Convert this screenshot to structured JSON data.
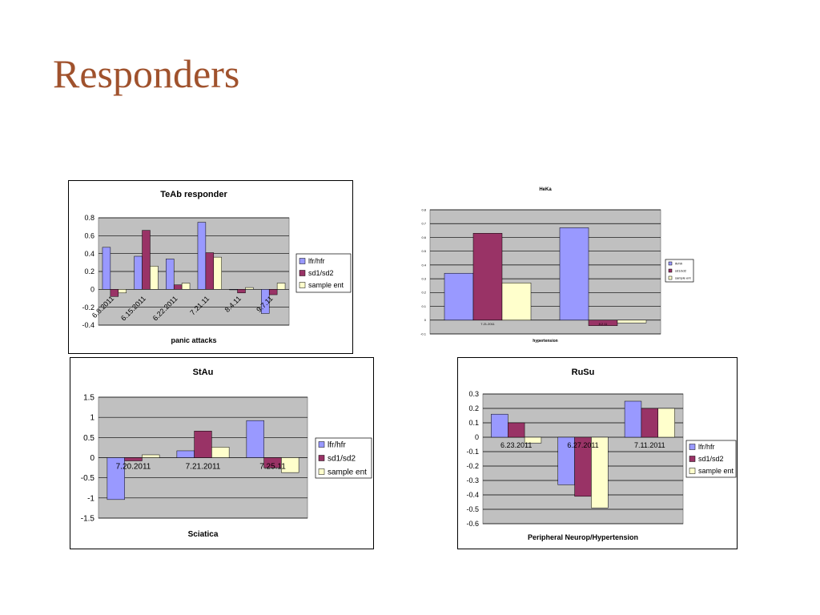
{
  "slide": {
    "title": "Responders"
  },
  "colors": {
    "lfr_hfr": "#9999ff",
    "sd1_sd2": "#993366",
    "sample_ent": "#ffffcc",
    "plot_bg": "#c0c0c0",
    "title_color": "#a0522d"
  },
  "chart_data": [
    {
      "type": "bar",
      "title": "TeAb responder",
      "xlabel": "panic attacks",
      "ylabel": "",
      "categories": [
        "6.8.2011",
        "6.15.2011",
        "6.22.2011",
        "7.21.11",
        "8.4.11",
        "9.7.11"
      ],
      "series": [
        {
          "name": "lfr/hfr",
          "values": [
            0.47,
            0.37,
            0.34,
            0.75,
            0.0,
            -0.27
          ]
        },
        {
          "name": "sd1/sd2",
          "values": [
            -0.08,
            0.66,
            0.05,
            0.41,
            -0.04,
            -0.06
          ]
        },
        {
          "name": "sample ent",
          "values": [
            -0.04,
            0.26,
            0.07,
            0.36,
            0.02,
            0.07
          ]
        }
      ],
      "ylim": [
        -0.4,
        0.8
      ],
      "yticks": [
        0.8,
        0.6,
        0.4,
        0.2,
        0,
        -0.2,
        -0.4
      ],
      "ytick_labels": [
        "0.8",
        "0.6",
        "0.4",
        "0.2",
        "0",
        "-0.2",
        "-0.4"
      ],
      "grid": true,
      "legend": "right"
    },
    {
      "type": "bar",
      "title": "HeKa",
      "xlabel": "hypertension",
      "ylabel": "",
      "categories": [
        "7.21.2011",
        "8.2.11"
      ],
      "series": [
        {
          "name": "lfr/hfr",
          "values": [
            0.34,
            0.67
          ]
        },
        {
          "name": "sd1/sd2",
          "values": [
            0.63,
            -0.04
          ]
        },
        {
          "name": "sample ent",
          "values": [
            0.27,
            -0.02
          ]
        }
      ],
      "ylim": [
        -0.1,
        0.8
      ],
      "yticks": [
        0.8,
        0.7,
        0.6,
        0.5,
        0.4,
        0.3,
        0.2,
        0.1,
        0,
        -0.1
      ],
      "ytick_labels": [
        "0.8",
        "0.7",
        "0.6",
        "0.5",
        "0.4",
        "0.3",
        "0.2",
        "0.1",
        "0",
        "-0.1"
      ],
      "grid": true,
      "legend": "right"
    },
    {
      "type": "bar",
      "title": "StAu",
      "xlabel": "Sciatica",
      "ylabel": "",
      "categories": [
        "7.20.2011",
        "7.21.2011",
        "7.25.11"
      ],
      "series": [
        {
          "name": "lfr/hfr",
          "values": [
            -1.04,
            0.17,
            0.92
          ]
        },
        {
          "name": "sd1/sd2",
          "values": [
            -0.08,
            0.66,
            -0.25
          ]
        },
        {
          "name": "sample ent",
          "values": [
            0.07,
            0.26,
            -0.37
          ]
        }
      ],
      "ylim": [
        -1.5,
        1.5
      ],
      "yticks": [
        1.5,
        1,
        0.5,
        0,
        -0.5,
        -1,
        -1.5
      ],
      "ytick_labels": [
        "1.5",
        "1",
        "0.5",
        "0",
        "-0.5",
        "-1",
        "-1.5"
      ],
      "grid": true,
      "legend": "right"
    },
    {
      "type": "bar",
      "title": "RuSu",
      "xlabel": "Peripheral Neurop/Hypertension",
      "ylabel": "",
      "categories": [
        "6.23.2011",
        "6.27.2011",
        "7.11.2011"
      ],
      "series": [
        {
          "name": "lfr/hfr",
          "values": [
            0.16,
            -0.33,
            0.25
          ]
        },
        {
          "name": "sd1/sd2",
          "values": [
            0.1,
            -0.41,
            0.2
          ]
        },
        {
          "name": "sample ent",
          "values": [
            -0.04,
            -0.49,
            0.2
          ]
        }
      ],
      "ylim": [
        -0.6,
        0.3
      ],
      "yticks": [
        0.3,
        0.2,
        0.1,
        0,
        -0.1,
        -0.2,
        -0.3,
        -0.4,
        -0.5,
        -0.6
      ],
      "ytick_labels": [
        "0.3",
        "0.2",
        "0.1",
        "0",
        "-0.1",
        "-0.2",
        "-0.3",
        "-0.4",
        "-0.5",
        "-0.6"
      ],
      "grid": true,
      "legend": "right"
    }
  ]
}
